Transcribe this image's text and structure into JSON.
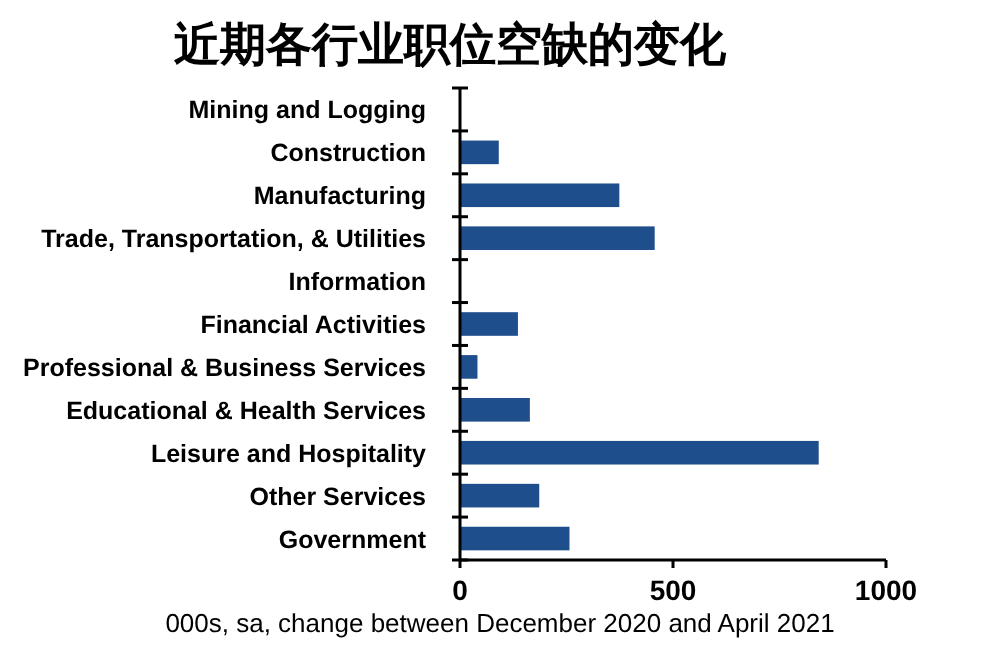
{
  "chart_data": {
    "type": "bar",
    "orientation": "horizontal",
    "title": "近期各行业职位空缺的变化",
    "xlabel": "000s, sa, change between December 2020 and April 2021",
    "categories": [
      "Mining and Logging",
      "Construction",
      "Manufacturing",
      "Trade, Transportation, & Utilities",
      "Information",
      "Financial Activities",
      "Professional & Business Services",
      "Educational & Health Services",
      "Leisure and Hospitality",
      "Other Services",
      "Government"
    ],
    "values": [
      0,
      91,
      374,
      457,
      0,
      136,
      41,
      164,
      842,
      186,
      257
    ],
    "color": "#1f4e8c",
    "xlim": [
      0,
      1000
    ],
    "xticks": [
      0,
      500,
      1000
    ]
  }
}
